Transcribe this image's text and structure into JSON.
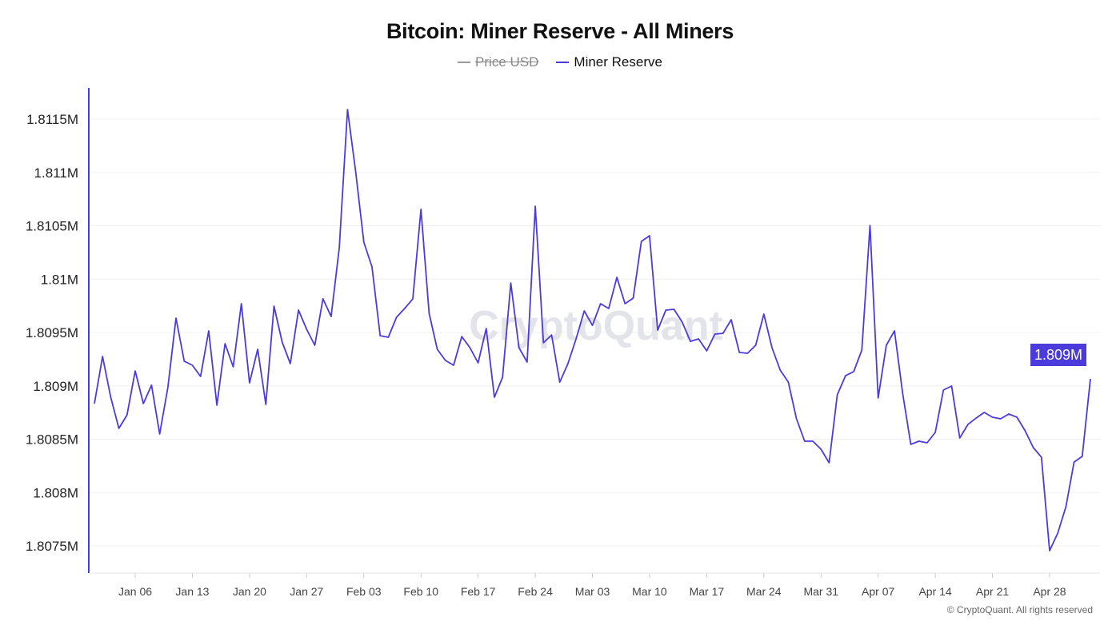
{
  "chart_data": {
    "type": "line",
    "title": "Bitcoin: Miner Reserve - All Miners",
    "legend": [
      {
        "name": "Price USD",
        "color": "#888888",
        "hidden": true
      },
      {
        "name": "Miner Reserve",
        "color": "#4b3bdc",
        "hidden": false
      }
    ],
    "legend_position": "top-center",
    "grid": true,
    "xlabel": "",
    "ylabel": "",
    "ylim": [
      1807250,
      1811800
    ],
    "y_ticks": [
      {
        "value": 1807500,
        "label": "1.8075M"
      },
      {
        "value": 1808000,
        "label": "1.808M"
      },
      {
        "value": 1808500,
        "label": "1.8085M"
      },
      {
        "value": 1809000,
        "label": "1.809M"
      },
      {
        "value": 1809500,
        "label": "1.8095M"
      },
      {
        "value": 1810000,
        "label": "1.81M"
      },
      {
        "value": 1810500,
        "label": "1.8105M"
      },
      {
        "value": 1811000,
        "label": "1.811M"
      },
      {
        "value": 1811500,
        "label": "1.8115M"
      }
    ],
    "x_ticks": [
      "Jan 06",
      "Jan 13",
      "Jan 20",
      "Jan 27",
      "Feb 03",
      "Feb 10",
      "Feb 17",
      "Feb 24",
      "Mar 03",
      "Mar 10",
      "Mar 17",
      "Mar 24",
      "Mar 31",
      "Apr 07",
      "Apr 14",
      "Apr 21",
      "Apr 28"
    ],
    "last_value_label": "1.809M",
    "x": [
      "Jan 01",
      "Jan 02",
      "Jan 03",
      "Jan 04",
      "Jan 05",
      "Jan 06",
      "Jan 07",
      "Jan 08",
      "Jan 09",
      "Jan 10",
      "Jan 11",
      "Jan 12",
      "Jan 13",
      "Jan 14",
      "Jan 15",
      "Jan 16",
      "Jan 17",
      "Jan 18",
      "Jan 19",
      "Jan 20",
      "Jan 21",
      "Jan 22",
      "Jan 23",
      "Jan 24",
      "Jan 25",
      "Jan 26",
      "Jan 27",
      "Jan 28",
      "Jan 29",
      "Jan 30",
      "Jan 31",
      "Feb 01",
      "Feb 02",
      "Feb 03",
      "Feb 04",
      "Feb 05",
      "Feb 06",
      "Feb 07",
      "Feb 08",
      "Feb 09",
      "Feb 10",
      "Feb 11",
      "Feb 12",
      "Feb 13",
      "Feb 14",
      "Feb 15",
      "Feb 16",
      "Feb 17",
      "Feb 18",
      "Feb 19",
      "Feb 20",
      "Feb 21",
      "Feb 22",
      "Feb 23",
      "Feb 24",
      "Feb 25",
      "Feb 26",
      "Feb 27",
      "Feb 28",
      "Mar 01",
      "Mar 02",
      "Mar 03",
      "Mar 04",
      "Mar 05",
      "Mar 06",
      "Mar 07",
      "Mar 08",
      "Mar 09",
      "Mar 10",
      "Mar 11",
      "Mar 12",
      "Mar 13",
      "Mar 14",
      "Mar 15",
      "Mar 16",
      "Mar 17",
      "Mar 18",
      "Mar 19",
      "Mar 20",
      "Mar 21",
      "Mar 22",
      "Mar 23",
      "Mar 24",
      "Mar 25",
      "Mar 26",
      "Mar 27",
      "Mar 28",
      "Mar 29",
      "Mar 30",
      "Mar 31",
      "Apr 01",
      "Apr 02",
      "Apr 03",
      "Apr 04",
      "Apr 05",
      "Apr 06",
      "Apr 07",
      "Apr 08",
      "Apr 09",
      "Apr 10",
      "Apr 11",
      "Apr 12",
      "Apr 13",
      "Apr 14",
      "Apr 15",
      "Apr 16",
      "Apr 17",
      "Apr 18",
      "Apr 19",
      "Apr 20",
      "Apr 21",
      "Apr 22",
      "Apr 23",
      "Apr 24",
      "Apr 25",
      "Apr 26",
      "Apr 27",
      "Apr 28",
      "Apr 29",
      "Apr 30",
      "May 01",
      "May 02",
      "May 03"
    ],
    "series": [
      {
        "name": "Miner Reserve",
        "values": [
          1808833,
          1809275,
          1808893,
          1808601,
          1808728,
          1809140,
          1808833,
          1809006,
          1808549,
          1808983,
          1809635,
          1809230,
          1809193,
          1809088,
          1809515,
          1808818,
          1809395,
          1809178,
          1809770,
          1809028,
          1809343,
          1808826,
          1809747,
          1809410,
          1809208,
          1809710,
          1809530,
          1809380,
          1809815,
          1809650,
          1810294,
          1811590,
          1811006,
          1810346,
          1810114,
          1809470,
          1809455,
          1809642,
          1809725,
          1809815,
          1810654,
          1809680,
          1809343,
          1809238,
          1809193,
          1809462,
          1809358,
          1809215,
          1809537,
          1808893,
          1809080,
          1809964,
          1809358,
          1809223,
          1810683,
          1809403,
          1809477,
          1809035,
          1809208,
          1809440,
          1809702,
          1809567,
          1809770,
          1809725,
          1810017,
          1809770,
          1809822,
          1810354,
          1810406,
          1809522,
          1809710,
          1809717,
          1809597,
          1809417,
          1809440,
          1809328,
          1809485,
          1809492,
          1809620,
          1809313,
          1809305,
          1809380,
          1809672,
          1809358,
          1809148,
          1809035,
          1808691,
          1808481,
          1808481,
          1808406,
          1808279,
          1808916,
          1809095,
          1809133,
          1809335,
          1810504,
          1808886,
          1809380,
          1809515,
          1808931,
          1808451,
          1808481,
          1808466,
          1808564,
          1808961,
          1808998,
          1808511,
          1808638,
          1808698,
          1808751,
          1808706,
          1808691,
          1808736,
          1808706,
          1808579,
          1808421,
          1808331,
          1807455,
          1807620,
          1807867,
          1808286,
          1808339,
          1809065
        ]
      }
    ]
  },
  "watermark": "CryptoQuant",
  "footer": {
    "credit": "© CryptoQuant. All rights reserved"
  }
}
